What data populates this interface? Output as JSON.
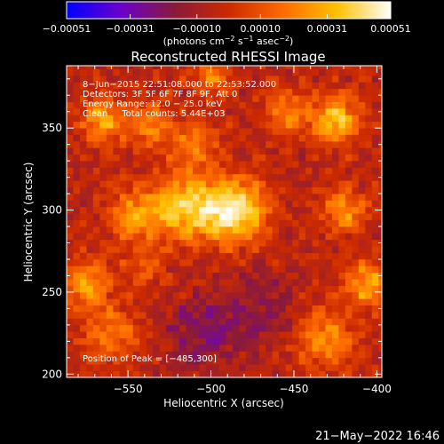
{
  "chart_data": {
    "type": "heatmap",
    "title": "Reconstructed RHESSI Image",
    "xlabel": "Heliocentric X (arcsec)",
    "ylabel": "Heliocentric Y (arcsec)",
    "xlim": [
      -587,
      -397
    ],
    "ylim": [
      198,
      388
    ],
    "x_ticks": [
      -550,
      -500,
      -450,
      -400
    ],
    "x_tick_labels": [
      "−550",
      "−500",
      "−450",
      "−400"
    ],
    "y_ticks": [
      200,
      250,
      300,
      350
    ],
    "y_tick_labels": [
      "200",
      "250",
      "300",
      "350"
    ],
    "colorbar": {
      "ticks": [
        -0.00051,
        -0.00031,
        -0.0001,
        0.0001,
        0.00031,
        0.00051
      ],
      "tick_labels": [
        "−0.00051",
        "−0.00031",
        "−0.00010",
        "0.00010",
        "0.00031",
        "0.00051"
      ],
      "unit_label_parts": [
        "(photons cm",
        "−2",
        " s",
        "−1",
        " asec",
        "−2",
        ")"
      ],
      "range": [
        -0.00051,
        0.00051
      ],
      "colormap": [
        "#0000ff",
        "#6a00cc",
        "#8a1a3a",
        "#cc2a00",
        "#ff6a00",
        "#ffc000",
        "#ffffff"
      ]
    },
    "annotations": [
      "8−Jun−2015 22:51:08.000 to 22:53:52.000",
      "Detectors: 3F 5F 6F 7F 8F 9F, Att 0",
      "Energy Range: 12.0 − 25.0 keV",
      "Clean     Total counts: 5.44E+03"
    ],
    "peak_label": "Position of Peak = [−485,300]",
    "peak_position": [
      -485,
      300
    ],
    "map_model": {
      "grid_step_arcsec": 4,
      "background": -4e-05,
      "sources": [
        {
          "x": -485,
          "y": 300,
          "amp": 0.00051,
          "sigma": 13
        },
        {
          "x": -515,
          "y": 302,
          "amp": 0.00041,
          "sigma": 14
        },
        {
          "x": -545,
          "y": 296,
          "amp": 0.0003,
          "sigma": 11
        },
        {
          "x": -565,
          "y": 355,
          "amp": 0.00034,
          "sigma": 9
        },
        {
          "x": -537,
          "y": 352,
          "amp": 0.00026,
          "sigma": 9
        },
        {
          "x": -510,
          "y": 340,
          "amp": 0.00022,
          "sigma": 10
        },
        {
          "x": -425,
          "y": 355,
          "amp": 0.0004,
          "sigma": 10
        },
        {
          "x": -455,
          "y": 360,
          "amp": 0.00025,
          "sigma": 9
        },
        {
          "x": -405,
          "y": 255,
          "amp": 0.00036,
          "sigma": 9
        },
        {
          "x": -420,
          "y": 300,
          "amp": 0.0003,
          "sigma": 9
        },
        {
          "x": -430,
          "y": 222,
          "amp": 0.00028,
          "sigma": 12
        },
        {
          "x": -575,
          "y": 255,
          "amp": 0.0003,
          "sigma": 10
        },
        {
          "x": -560,
          "y": 225,
          "amp": 0.00022,
          "sigma": 12
        },
        {
          "x": -540,
          "y": 265,
          "amp": 0.00018,
          "sigma": 8
        },
        {
          "x": -500,
          "y": 380,
          "amp": 0.00022,
          "sigma": 8
        },
        {
          "x": -470,
          "y": 240,
          "amp": -0.00012,
          "sigma": 16
        },
        {
          "x": -505,
          "y": 225,
          "amp": -0.00016,
          "sigma": 16
        }
      ]
    }
  },
  "footer": {
    "timestamp": "21−May−2022 16:46"
  }
}
